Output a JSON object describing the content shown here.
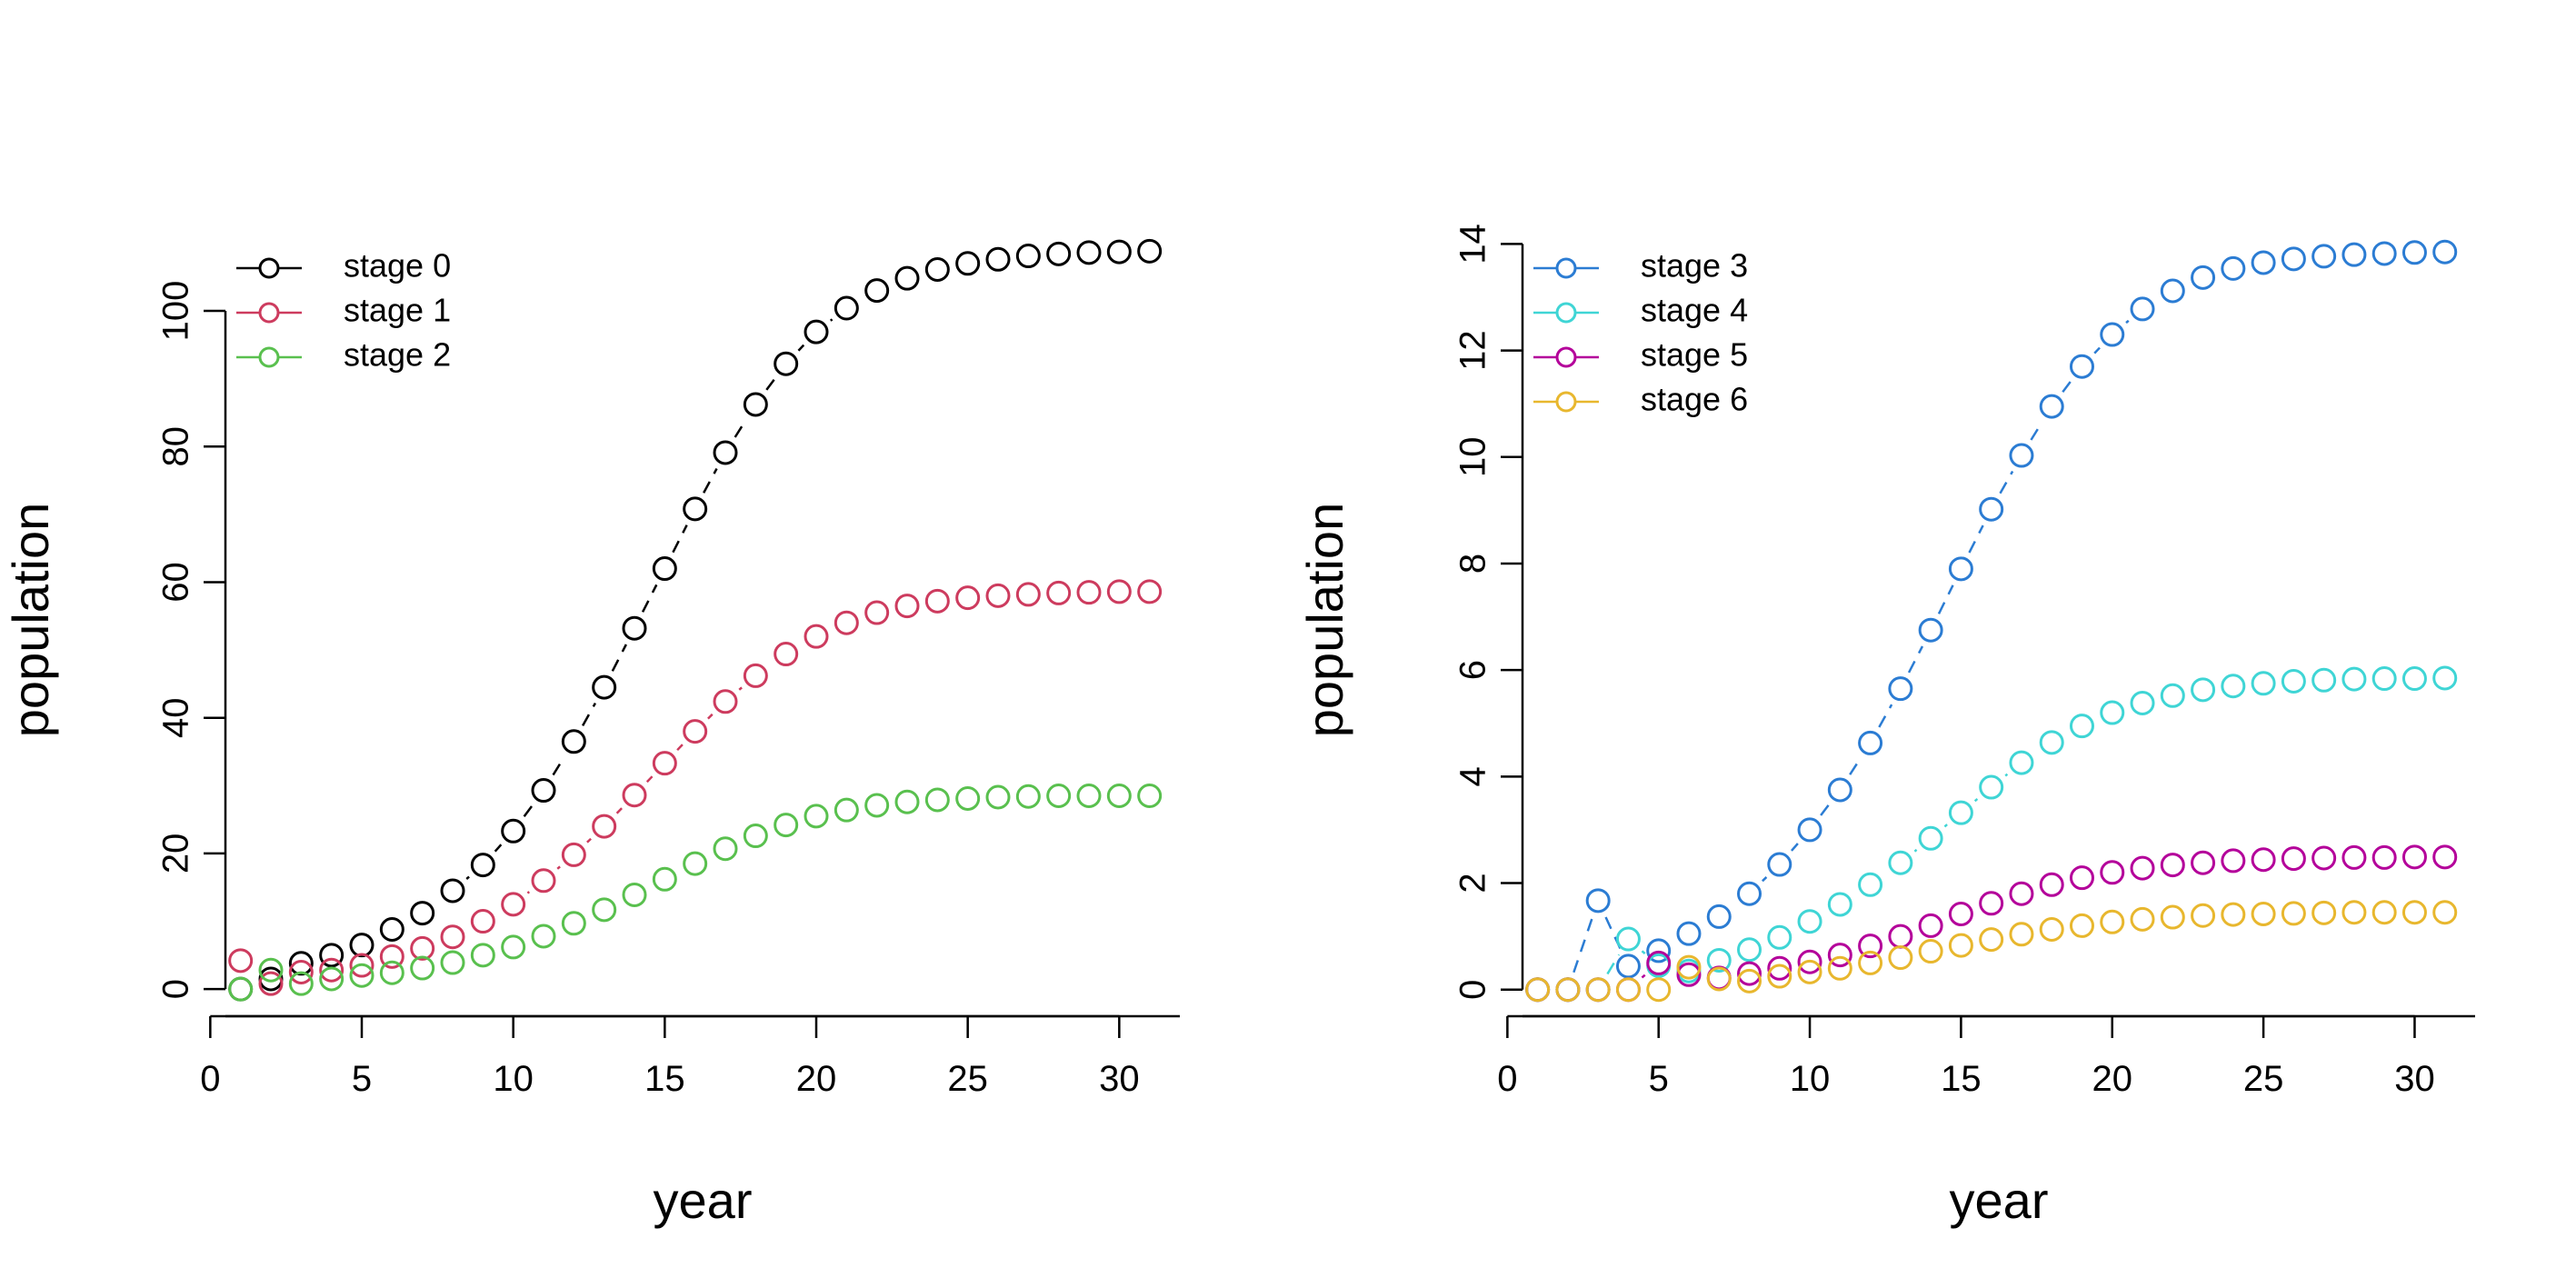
{
  "chart_data": [
    {
      "type": "line",
      "xlabel": "year",
      "ylabel": "population",
      "xlim": [
        0.5,
        32
      ],
      "ylim": [
        -4,
        113
      ],
      "x_ticks": [
        0,
        5,
        10,
        15,
        20,
        25,
        30
      ],
      "y_ticks": [
        0,
        20,
        40,
        60,
        80,
        100
      ],
      "legend_position": "top-left",
      "grid": false,
      "line_style": "dashed with hollow circle markers",
      "x": [
        1,
        2,
        3,
        4,
        5,
        6,
        7,
        8,
        9,
        10,
        11,
        12,
        13,
        14,
        15,
        16,
        17,
        18,
        19,
        20,
        21,
        22,
        23,
        24,
        25,
        26,
        27,
        28,
        29,
        30,
        31
      ],
      "series": [
        {
          "name": "stage 0",
          "color": "#000000",
          "values": [
            0,
            1.5,
            3.8,
            5,
            6.5,
            8.8,
            11.2,
            14.5,
            18.3,
            23.3,
            29.3,
            36.5,
            44.5,
            53.2,
            62,
            70.8,
            79.1,
            86.2,
            92.2,
            96.9,
            100.4,
            103,
            104.8,
            106.1,
            107,
            107.6,
            108.1,
            108.4,
            108.6,
            108.7,
            108.8
          ]
        },
        {
          "name": "stage 1",
          "color": "#CD3B5E",
          "values": [
            4.2,
            0.8,
            2.5,
            2.8,
            3.5,
            4.8,
            6,
            7.7,
            10,
            12.5,
            16,
            19.8,
            24,
            28.6,
            33.3,
            38,
            42.4,
            46.2,
            49.4,
            52,
            54,
            55.5,
            56.5,
            57.2,
            57.7,
            58,
            58.2,
            58.4,
            58.5,
            58.6,
            58.6
          ]
        },
        {
          "name": "stage 2",
          "color": "#59C04E",
          "values": [
            0,
            2.8,
            0.8,
            1.5,
            2,
            2.4,
            3.1,
            3.9,
            5,
            6.2,
            7.8,
            9.7,
            11.7,
            13.9,
            16.2,
            18.5,
            20.7,
            22.6,
            24.2,
            25.5,
            26.4,
            27.1,
            27.6,
            27.9,
            28.1,
            28.3,
            28.4,
            28.5,
            28.5,
            28.5,
            28.5
          ]
        }
      ]
    },
    {
      "type": "line",
      "xlabel": "year",
      "ylabel": "population",
      "xlim": [
        0.5,
        32
      ],
      "ylim": [
        -0.5,
        14.4
      ],
      "x_ticks": [
        0,
        5,
        10,
        15,
        20,
        25,
        30
      ],
      "y_ticks": [
        0,
        2,
        4,
        6,
        8,
        10,
        12,
        14
      ],
      "legend_position": "top-left",
      "grid": false,
      "line_style": "dashed with hollow circle markers",
      "x": [
        1,
        2,
        3,
        4,
        5,
        6,
        7,
        8,
        9,
        10,
        11,
        12,
        13,
        14,
        15,
        16,
        17,
        18,
        19,
        20,
        21,
        22,
        23,
        24,
        25,
        26,
        27,
        28,
        29,
        30,
        31
      ],
      "series": [
        {
          "name": "stage 3",
          "color": "#2B7CD3",
          "values": [
            0,
            0,
            1.67,
            0.44,
            0.73,
            1.05,
            1.37,
            1.8,
            2.35,
            3,
            3.75,
            4.63,
            5.65,
            6.75,
            7.9,
            9.02,
            10.03,
            10.95,
            11.7,
            12.3,
            12.78,
            13.12,
            13.37,
            13.54,
            13.65,
            13.72,
            13.77,
            13.8,
            13.82,
            13.84,
            13.85
          ]
        },
        {
          "name": "stage 4",
          "color": "#3FD5D5",
          "values": [
            0,
            0,
            0,
            0.95,
            0.45,
            0.35,
            0.55,
            0.75,
            0.98,
            1.28,
            1.6,
            1.97,
            2.38,
            2.84,
            3.32,
            3.8,
            4.26,
            4.64,
            4.95,
            5.2,
            5.38,
            5.52,
            5.63,
            5.7,
            5.75,
            5.79,
            5.81,
            5.83,
            5.84,
            5.84,
            5.85
          ]
        },
        {
          "name": "stage 5",
          "color": "#B4009A",
          "values": [
            0,
            0,
            0,
            0,
            0.5,
            0.28,
            0.22,
            0.3,
            0.4,
            0.52,
            0.65,
            0.82,
            1,
            1.2,
            1.42,
            1.62,
            1.8,
            1.97,
            2.1,
            2.2,
            2.28,
            2.34,
            2.38,
            2.42,
            2.44,
            2.46,
            2.47,
            2.48,
            2.48,
            2.49,
            2.49
          ]
        },
        {
          "name": "stage 6",
          "color": "#E8B72E",
          "values": [
            0,
            0,
            0,
            0,
            0,
            0.42,
            0.2,
            0.16,
            0.25,
            0.33,
            0.4,
            0.5,
            0.6,
            0.72,
            0.83,
            0.94,
            1.04,
            1.13,
            1.2,
            1.27,
            1.32,
            1.36,
            1.39,
            1.41,
            1.42,
            1.43,
            1.44,
            1.45,
            1.45,
            1.45,
            1.45
          ]
        }
      ]
    }
  ]
}
